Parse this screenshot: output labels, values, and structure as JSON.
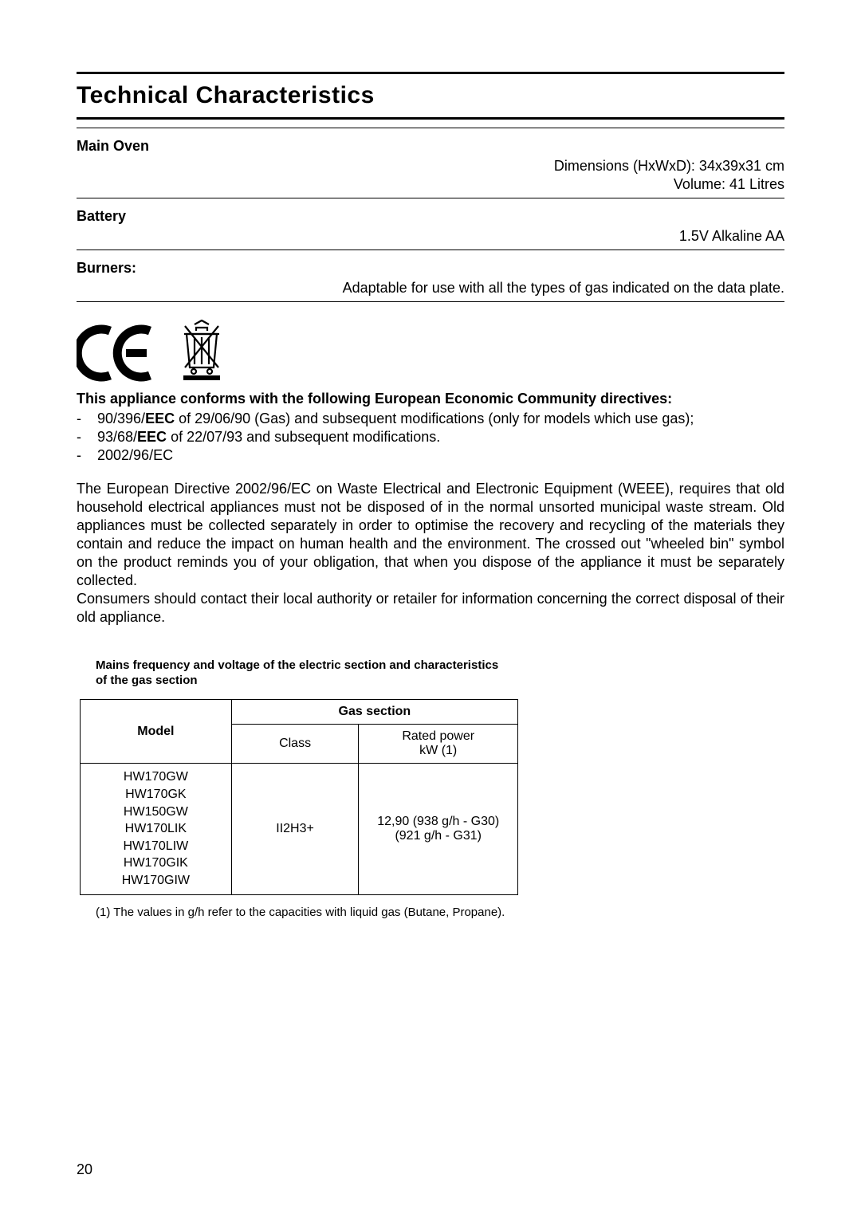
{
  "title": "Technical Characteristics",
  "specs": {
    "main_oven": {
      "label": "Main Oven",
      "dimensions": "Dimensions (HxWxD): 34x39x31 cm",
      "volume": "Volume: 41 Litres"
    },
    "battery": {
      "label": "Battery",
      "value": "1.5V Alkaline AA"
    },
    "burners": {
      "label": "Burners:",
      "value": "Adaptable for use with all the types of gas indicated on the data plate."
    }
  },
  "directives": {
    "title": "This appliance conforms with the following European Economic Community directives:",
    "items": [
      {
        "prefix": "90/396/",
        "bold": "EEC",
        "suffix": " of 29/06/90 (Gas) and subsequent modifications (only for models which use gas);"
      },
      {
        "prefix": "93/68/",
        "bold": "EEC",
        "suffix": " of 22/07/93 and subsequent modifications."
      },
      {
        "prefix": "2002/96/EC",
        "bold": "",
        "suffix": ""
      }
    ]
  },
  "weee_para1": "The European Directive 2002/96/EC on Waste Electrical and Electronic Equipment (WEEE), requires that old household electrical appliances must not be disposed of in the normal unsorted municipal waste stream. Old appliances must be collected separately in order to optimise the recovery and recycling of the materials they contain and reduce the impact on human health and the environment. The crossed out \"wheeled bin\" symbol on the product reminds you of your obligation, that when you dispose of the appliance it must be separately collected.",
  "weee_para2": "Consumers should contact their local authority or retailer for information concerning the correct disposal of their old appliance.",
  "table": {
    "caption": "Mains frequency and voltage of the electric section and characteristics of the gas section",
    "headers": {
      "model": "Model",
      "gas_section": "Gas section",
      "class": "Class",
      "rated_power": "Rated power\nkW (1)"
    },
    "row": {
      "models": [
        "HW170GW",
        "HW170GK",
        "HW150GW",
        "HW170LIK",
        "HW170LIW",
        "HW170GIK",
        "HW170GIW"
      ],
      "class": "II2H3+",
      "power_l1": "12,90 (938 g/h - G30)",
      "power_l2": "(921 g/h - G31)"
    },
    "footnote": "(1) The values in g/h refer to the capacities with liquid gas (Butane, Propane)."
  },
  "page_number": "20"
}
